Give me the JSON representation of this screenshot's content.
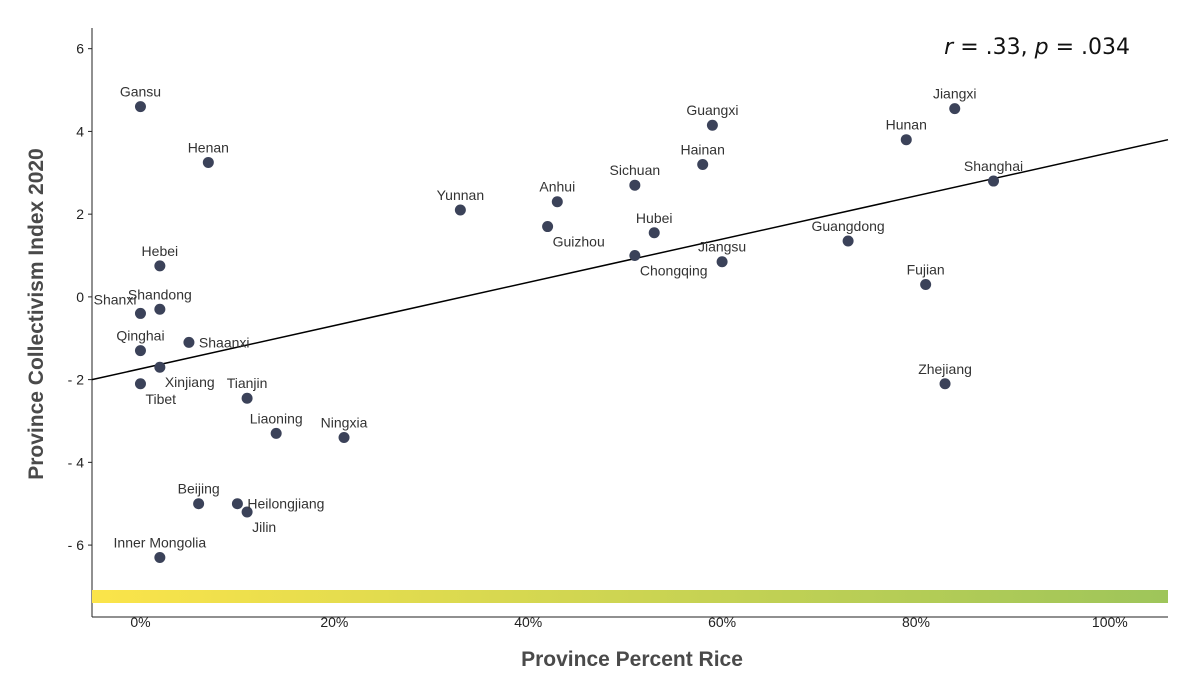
{
  "chart_data": {
    "type": "scatter",
    "title": "",
    "xlabel": "Province Percent Rice",
    "ylabel": "Province Collectivism Index 2020",
    "xlim": [
      -5,
      106
    ],
    "ylim": [
      -7.4,
      6.5
    ],
    "x_ticks": [
      {
        "value": 0,
        "label": "0%"
      },
      {
        "value": 20,
        "label": "20%"
      },
      {
        "value": 40,
        "label": "40%"
      },
      {
        "value": 60,
        "label": "60%"
      },
      {
        "value": 80,
        "label": "80%"
      },
      {
        "value": 100,
        "label": "100%"
      }
    ],
    "y_ticks": [
      {
        "value": 6,
        "label": "6"
      },
      {
        "value": 4,
        "label": "4"
      },
      {
        "value": 2,
        "label": "2"
      },
      {
        "value": 0,
        "label": "0"
      },
      {
        "value": -2,
        "label": "- 2"
      },
      {
        "value": -4,
        "label": "- 4"
      },
      {
        "value": -6,
        "label": "- 6"
      }
    ],
    "grid": false,
    "points": [
      {
        "name": "Gansu",
        "x": 0,
        "y": 4.6,
        "label_pos": "above"
      },
      {
        "name": "Henan",
        "x": 7,
        "y": 3.25,
        "label_pos": "above"
      },
      {
        "name": "Hebei",
        "x": 2,
        "y": 0.75,
        "label_pos": "above"
      },
      {
        "name": "Shanxi",
        "x": 0,
        "y": -0.4,
        "label_pos": "above-left"
      },
      {
        "name": "Shandong",
        "x": 2,
        "y": -0.3,
        "label_pos": "above"
      },
      {
        "name": "Qinghai",
        "x": 0,
        "y": -1.3,
        "label_pos": "above"
      },
      {
        "name": "Shaanxi",
        "x": 5,
        "y": -1.1,
        "label_pos": "right"
      },
      {
        "name": "Xinjiang",
        "x": 2,
        "y": -1.7,
        "label_pos": "below-right"
      },
      {
        "name": "Tibet",
        "x": 0,
        "y": -2.1,
        "label_pos": "below-right"
      },
      {
        "name": "Tianjin",
        "x": 11,
        "y": -2.45,
        "label_pos": "above"
      },
      {
        "name": "Liaoning",
        "x": 14,
        "y": -3.3,
        "label_pos": "above"
      },
      {
        "name": "Ningxia",
        "x": 21,
        "y": -3.4,
        "label_pos": "above"
      },
      {
        "name": "Beijing",
        "x": 6,
        "y": -5.0,
        "label_pos": "above"
      },
      {
        "name": "Heilongjiang",
        "x": 10,
        "y": -5.0,
        "label_pos": "right"
      },
      {
        "name": "Jilin",
        "x": 11,
        "y": -5.2,
        "label_pos": "below-right"
      },
      {
        "name": "Inner Mongolia",
        "x": 2,
        "y": -6.3,
        "label_pos": "above"
      },
      {
        "name": "Yunnan",
        "x": 33,
        "y": 2.1,
        "label_pos": "above"
      },
      {
        "name": "Anhui",
        "x": 43,
        "y": 2.3,
        "label_pos": "above"
      },
      {
        "name": "Guizhou",
        "x": 42,
        "y": 1.7,
        "label_pos": "below-right"
      },
      {
        "name": "Sichuan",
        "x": 51,
        "y": 2.7,
        "label_pos": "above"
      },
      {
        "name": "Hubei",
        "x": 53,
        "y": 1.55,
        "label_pos": "above"
      },
      {
        "name": "Chongqing",
        "x": 51,
        "y": 1.0,
        "label_pos": "below-right"
      },
      {
        "name": "Guangxi",
        "x": 59,
        "y": 4.15,
        "label_pos": "above"
      },
      {
        "name": "Hainan",
        "x": 58,
        "y": 3.2,
        "label_pos": "above"
      },
      {
        "name": "Jiangsu",
        "x": 60,
        "y": 0.85,
        "label_pos": "above"
      },
      {
        "name": "Guangdong",
        "x": 73,
        "y": 1.35,
        "label_pos": "above"
      },
      {
        "name": "Fujian",
        "x": 81,
        "y": 0.3,
        "label_pos": "above"
      },
      {
        "name": "Hunan",
        "x": 79,
        "y": 3.8,
        "label_pos": "above"
      },
      {
        "name": "Jiangxi",
        "x": 84,
        "y": 4.55,
        "label_pos": "above"
      },
      {
        "name": "Shanghai",
        "x": 88,
        "y": 2.8,
        "label_pos": "above"
      },
      {
        "name": "Zhejiang",
        "x": 83,
        "y": -2.1,
        "label_pos": "above"
      }
    ],
    "trendline": {
      "x": [
        -5,
        106
      ],
      "y": [
        -2.0,
        3.8
      ]
    },
    "annotation": {
      "r_symbol": "r",
      "r_text": " = .33, ",
      "p_symbol": "p",
      "p_text": " = .034"
    },
    "gradient_bar": {
      "from_color": "#fbe44a",
      "to_color": "#9ec55a"
    },
    "colors": {
      "point": "#3b4259",
      "line": "#000000"
    }
  }
}
